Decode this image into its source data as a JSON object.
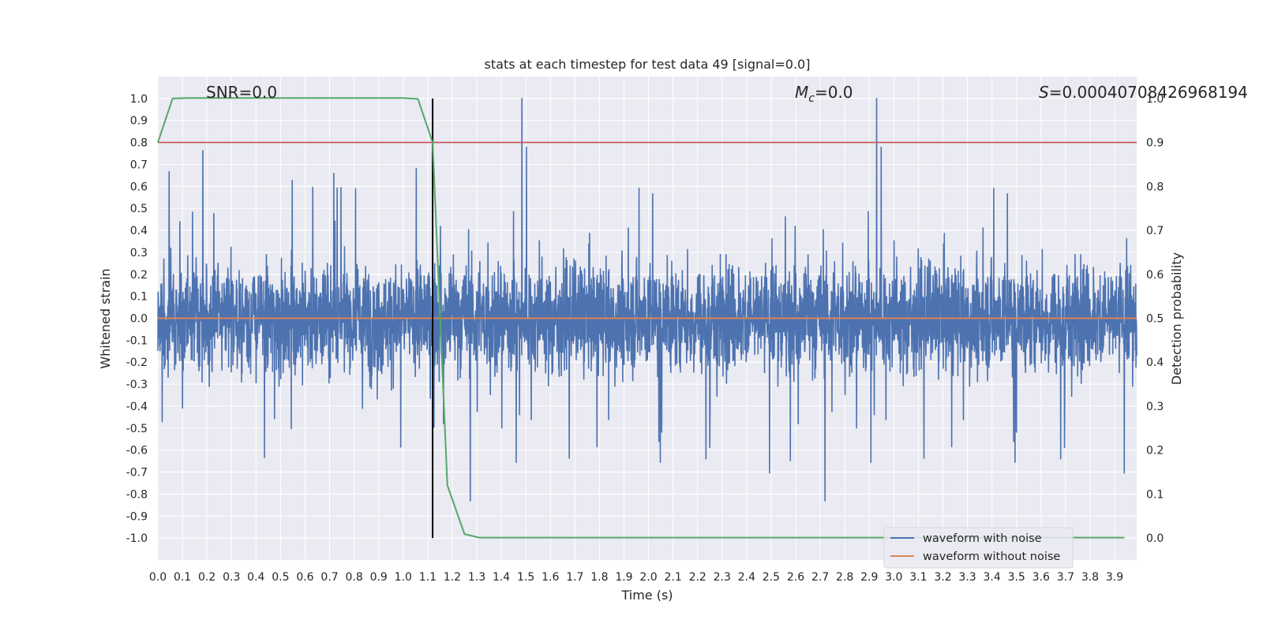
{
  "chart_data": {
    "type": "line",
    "title": "stats at each timestep for test data 49 [signal=0.0]",
    "xlabel": "Time (s)",
    "ylabel_left": "Whitened strain",
    "ylabel_right": "Detection probability",
    "xlim": [
      0.0,
      3.99
    ],
    "ylim_left": [
      -1.1,
      1.1
    ],
    "ylim_right": [
      -0.05,
      1.05
    ],
    "x_ticks": [
      "0.0",
      "0.1",
      "0.2",
      "0.3",
      "0.4",
      "0.5",
      "0.6",
      "0.7",
      "0.8",
      "0.9",
      "1.0",
      "1.1",
      "1.2",
      "1.3",
      "1.4",
      "1.5",
      "1.6",
      "1.7",
      "1.8",
      "1.9",
      "2.0",
      "2.1",
      "2.2",
      "2.3",
      "2.4",
      "2.5",
      "2.6",
      "2.7",
      "2.8",
      "2.9",
      "3.0",
      "3.1",
      "3.2",
      "3.3",
      "3.4",
      "3.5",
      "3.6",
      "3.7",
      "3.8",
      "3.9"
    ],
    "y_ticks_left": [
      "1.0",
      "0.9",
      "0.8",
      "0.7",
      "0.6",
      "0.5",
      "0.4",
      "0.3",
      "0.2",
      "0.1",
      "0.0",
      "-0.1",
      "-0.2",
      "-0.3",
      "-0.4",
      "-0.5",
      "-0.6",
      "-0.7",
      "-0.8",
      "-0.9",
      "-1.0"
    ],
    "y_ticks_right": [
      "1.0",
      "0.9",
      "0.8",
      "0.7",
      "0.6",
      "0.5",
      "0.4",
      "0.3",
      "0.2",
      "0.1",
      "0.0"
    ],
    "annotations": {
      "snr": "SNR=0.0",
      "mc_symbol": "M",
      "mc_sub": "c",
      "mc_value": "=0.0",
      "s_symbol": "S",
      "s_value": "=0.00040708426968194"
    },
    "threshold_line": {
      "y_right": 0.9,
      "color": "#c44e52"
    },
    "marker_line": {
      "x": 1.12,
      "color": "#000000"
    },
    "legend": {
      "placement": "lower-right",
      "items": [
        {
          "label": "waveform with noise",
          "color": "#4c72b0"
        },
        {
          "label": "waveform without noise",
          "color": "#dd8452"
        }
      ]
    },
    "series": [
      {
        "name": "waveform with noise",
        "axis": "left",
        "color": "#4c72b0",
        "kind": "noise",
        "amplitude_range": [
          -0.93,
          1.0
        ]
      },
      {
        "name": "waveform without noise",
        "axis": "left",
        "color": "#dd8452",
        "x": [
          0.0,
          3.99
        ],
        "y": [
          0.0,
          0.0
        ]
      },
      {
        "axis": "right",
        "color": "#55a868",
        "x": [
          0.0,
          0.06,
          0.12,
          0.18,
          0.25,
          0.5,
          0.75,
          1.0,
          1.06,
          1.12,
          1.18,
          1.25,
          1.31,
          1.5,
          2.0,
          2.5,
          3.0,
          3.5,
          3.94
        ],
        "y": [
          0.9,
          1.0,
          1.001,
          1.001,
          1.001,
          1.001,
          1.001,
          1.001,
          0.999,
          0.9,
          0.12,
          0.009,
          0.001,
          0.001,
          0.001,
          0.001,
          0.001,
          0.001,
          0.001
        ]
      }
    ],
    "colors": {
      "plot_bg": "#eaeaf2",
      "grid": "#ffffff"
    }
  }
}
